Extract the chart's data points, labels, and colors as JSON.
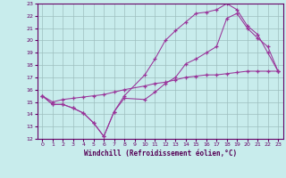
{
  "xlabel": "Windchill (Refroidissement éolien,°C)",
  "bg_color": "#c8ecec",
  "line_color": "#993399",
  "grid_color": "#b0c8c8",
  "xlim": [
    -0.5,
    23.5
  ],
  "ylim": [
    12,
    23
  ],
  "xticks": [
    0,
    1,
    2,
    3,
    4,
    5,
    6,
    7,
    8,
    9,
    10,
    11,
    12,
    13,
    14,
    15,
    16,
    17,
    18,
    19,
    20,
    21,
    22,
    23
  ],
  "yticks": [
    12,
    13,
    14,
    15,
    16,
    17,
    18,
    19,
    20,
    21,
    22,
    23
  ],
  "line1_x": [
    0,
    1,
    2,
    3,
    4,
    5,
    6,
    7,
    8,
    10,
    11,
    12,
    13,
    14,
    15,
    16,
    17,
    18,
    19,
    20,
    21,
    22,
    23
  ],
  "line1_y": [
    15.5,
    14.8,
    14.8,
    14.5,
    14.1,
    13.3,
    12.2,
    14.2,
    15.3,
    15.2,
    15.8,
    16.5,
    17.0,
    18.1,
    18.5,
    19.0,
    19.5,
    21.8,
    22.2,
    21.0,
    20.2,
    19.5,
    17.5
  ],
  "line2_x": [
    0,
    1,
    2,
    3,
    4,
    5,
    6,
    7,
    8,
    10,
    11,
    12,
    13,
    14,
    15,
    16,
    17,
    18,
    19,
    20,
    21,
    22,
    23
  ],
  "line2_y": [
    15.5,
    14.8,
    14.8,
    14.5,
    14.1,
    13.3,
    12.2,
    14.2,
    15.5,
    17.2,
    18.5,
    20.0,
    20.8,
    21.5,
    22.2,
    22.3,
    22.5,
    23.0,
    22.5,
    21.2,
    20.5,
    19.0,
    17.5
  ],
  "line3_x": [
    0,
    1,
    2,
    3,
    4,
    5,
    6,
    7,
    8,
    10,
    11,
    12,
    13,
    14,
    15,
    16,
    17,
    18,
    19,
    20,
    21,
    22,
    23
  ],
  "line3_y": [
    15.5,
    15.0,
    15.2,
    15.3,
    15.4,
    15.5,
    15.6,
    15.8,
    16.0,
    16.3,
    16.5,
    16.6,
    16.8,
    17.0,
    17.1,
    17.2,
    17.2,
    17.3,
    17.4,
    17.5,
    17.5,
    17.5,
    17.5
  ]
}
